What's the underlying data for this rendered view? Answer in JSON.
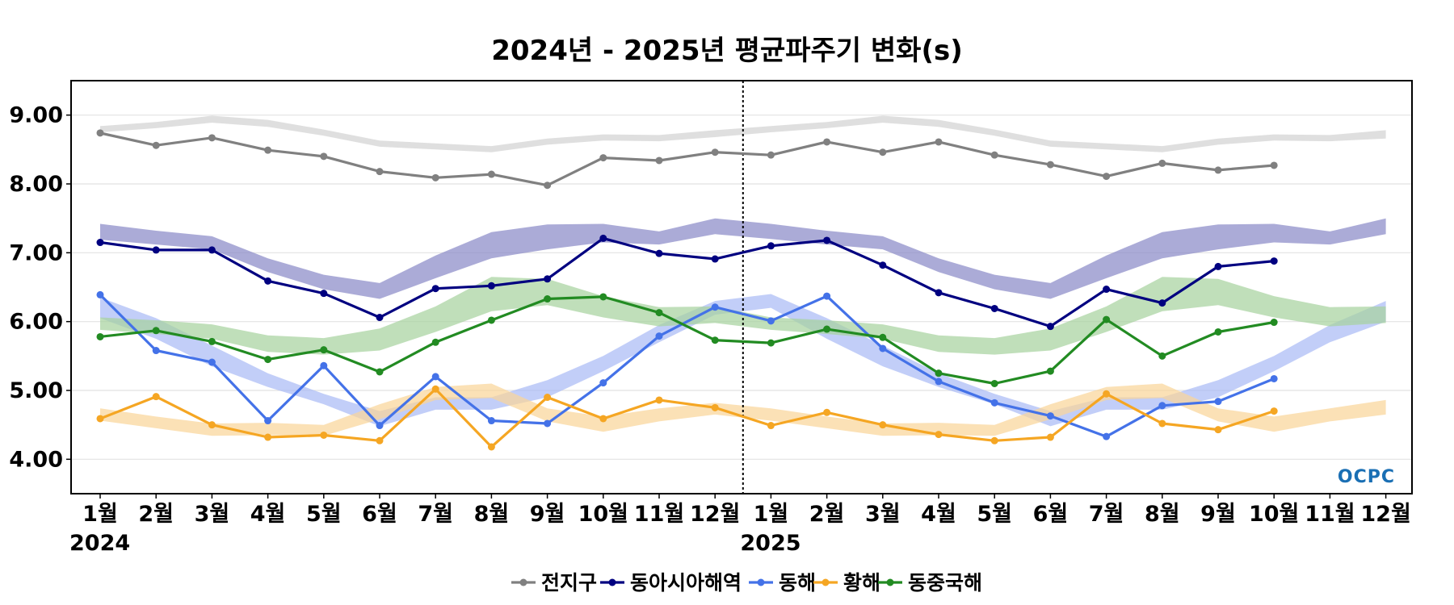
{
  "chart_data": {
    "type": "line",
    "title": "2024년 - 2025년 평균파주기 변화(s)",
    "xlabel": "",
    "ylabel": "",
    "ylim": [
      3.5,
      9.5
    ],
    "yticks": [
      "9.00",
      "8.00",
      "7.00",
      "6.00",
      "5.00",
      "4.00"
    ],
    "ytick_values": [
      9,
      8,
      7,
      6,
      5,
      4
    ],
    "categories": [
      "1월",
      "2월",
      "3월",
      "4월",
      "5월",
      "6월",
      "7월",
      "8월",
      "9월",
      "10월",
      "11월",
      "12월",
      "1월",
      "2월",
      "3월",
      "4월",
      "5월",
      "6월",
      "7월",
      "8월",
      "9월",
      "10월",
      "11월",
      "12월"
    ],
    "year_labels": [
      {
        "label": "2024",
        "index": 0
      },
      {
        "label": "2025",
        "index": 12
      }
    ],
    "divider_between": [
      11,
      12
    ],
    "grid": "horizontal",
    "legend_position": "bottom-center",
    "logo": "OCPC",
    "series": [
      {
        "name": "전지구",
        "color": "#808080",
        "values": [
          8.74,
          8.56,
          8.67,
          8.49,
          8.4,
          8.18,
          8.09,
          8.14,
          7.98,
          8.38,
          8.34,
          8.46,
          8.42,
          8.61,
          8.46,
          8.61,
          8.42,
          8.28,
          8.11,
          8.3,
          8.2,
          8.27,
          null,
          null
        ]
      },
      {
        "name": "동아시아해역",
        "color": "#000080",
        "values": [
          7.15,
          7.04,
          7.04,
          6.59,
          6.41,
          6.06,
          6.48,
          6.52,
          6.62,
          7.21,
          6.99,
          6.91,
          7.1,
          7.18,
          6.82,
          6.42,
          6.19,
          5.93,
          6.47,
          6.27,
          6.8,
          6.88,
          null,
          null
        ]
      },
      {
        "name": "동해",
        "color": "#4472e8",
        "values": [
          6.39,
          5.58,
          5.41,
          4.56,
          5.36,
          4.49,
          5.2,
          4.56,
          4.52,
          5.11,
          5.79,
          6.21,
          6.01,
          6.37,
          5.61,
          5.13,
          4.82,
          4.63,
          4.33,
          4.78,
          4.84,
          5.17,
          null,
          null
        ]
      },
      {
        "name": "황해",
        "color": "#f5a623",
        "values": [
          4.59,
          4.91,
          4.5,
          4.32,
          4.35,
          4.27,
          5.02,
          4.18,
          4.9,
          4.59,
          4.86,
          4.75,
          4.49,
          4.68,
          4.5,
          4.36,
          4.27,
          4.32,
          4.95,
          4.52,
          4.43,
          4.7,
          null,
          null
        ]
      },
      {
        "name": "동중국해",
        "color": "#228b22",
        "values": [
          5.78,
          5.87,
          5.71,
          5.45,
          5.59,
          5.27,
          5.7,
          6.02,
          6.33,
          6.36,
          6.13,
          5.73,
          5.69,
          5.89,
          5.77,
          5.25,
          5.1,
          5.28,
          6.03,
          5.5,
          5.85,
          5.99,
          null,
          null
        ]
      }
    ],
    "bands": [
      {
        "series": "전지구",
        "color": "#d3d3d3",
        "lower": [
          8.75,
          8.81,
          8.89,
          8.83,
          8.7,
          8.54,
          8.5,
          8.46,
          8.57,
          8.63,
          8.62,
          8.68,
          8.75,
          8.81,
          8.89,
          8.83,
          8.7,
          8.54,
          8.5,
          8.46,
          8.57,
          8.63,
          8.62,
          8.66
        ],
        "upper": [
          8.84,
          8.9,
          8.99,
          8.93,
          8.79,
          8.63,
          8.59,
          8.55,
          8.66,
          8.72,
          8.71,
          8.78,
          8.84,
          8.9,
          8.99,
          8.93,
          8.79,
          8.63,
          8.59,
          8.55,
          8.66,
          8.72,
          8.71,
          8.78
        ]
      },
      {
        "series": "동아시아해역",
        "color": "#8b8bc7",
        "lower": [
          7.19,
          7.12,
          7.05,
          6.72,
          6.47,
          6.33,
          6.63,
          6.92,
          7.05,
          7.15,
          7.12,
          7.27,
          7.2,
          7.12,
          7.05,
          6.72,
          6.47,
          6.33,
          6.63,
          6.92,
          7.05,
          7.15,
          7.12,
          7.27
        ],
        "upper": [
          7.42,
          7.32,
          7.24,
          6.92,
          6.68,
          6.56,
          6.96,
          7.3,
          7.41,
          7.42,
          7.31,
          7.5,
          7.42,
          7.32,
          7.24,
          6.92,
          6.68,
          6.56,
          6.96,
          7.3,
          7.41,
          7.42,
          7.31,
          7.5
        ]
      },
      {
        "series": "동해",
        "color": "#aabbf5",
        "lower": [
          6.05,
          5.75,
          5.35,
          5.05,
          4.8,
          4.48,
          4.72,
          4.72,
          4.9,
          5.28,
          5.7,
          6.1,
          6.2,
          5.75,
          5.35,
          5.05,
          4.8,
          4.48,
          4.72,
          4.72,
          4.9,
          5.28,
          5.7,
          6.0
        ],
        "upper": [
          6.35,
          6.05,
          5.65,
          5.25,
          4.95,
          4.7,
          4.9,
          4.9,
          5.15,
          5.5,
          5.95,
          6.3,
          6.4,
          6.05,
          5.65,
          5.25,
          4.95,
          4.7,
          4.9,
          4.9,
          5.15,
          5.5,
          5.95,
          6.3
        ]
      },
      {
        "series": "황해",
        "color": "#fad59a",
        "lower": [
          4.56,
          4.45,
          4.34,
          4.35,
          4.34,
          4.58,
          4.86,
          4.89,
          4.55,
          4.4,
          4.55,
          4.65,
          4.56,
          4.45,
          4.34,
          4.35,
          4.34,
          4.58,
          4.86,
          4.89,
          4.55,
          4.4,
          4.55,
          4.65
        ],
        "upper": [
          4.74,
          4.62,
          4.52,
          4.53,
          4.5,
          4.8,
          5.05,
          5.1,
          4.74,
          4.62,
          4.74,
          4.82,
          4.74,
          4.62,
          4.52,
          4.53,
          4.5,
          4.8,
          5.05,
          5.1,
          4.74,
          4.62,
          4.74,
          4.86
        ]
      },
      {
        "series": "동중국해",
        "color": "#a8d3a0",
        "lower": [
          5.88,
          5.82,
          5.75,
          5.56,
          5.52,
          5.58,
          5.85,
          6.15,
          6.24,
          6.06,
          5.93,
          5.98,
          5.88,
          5.82,
          5.75,
          5.56,
          5.52,
          5.58,
          5.85,
          6.15,
          6.24,
          6.06,
          5.93,
          5.98
        ],
        "upper": [
          6.06,
          6.02,
          5.96,
          5.8,
          5.76,
          5.9,
          6.22,
          6.65,
          6.62,
          6.37,
          6.21,
          6.22,
          6.06,
          6.02,
          5.96,
          5.8,
          5.76,
          5.9,
          6.22,
          6.65,
          6.62,
          6.37,
          6.21,
          6.22
        ]
      }
    ]
  }
}
